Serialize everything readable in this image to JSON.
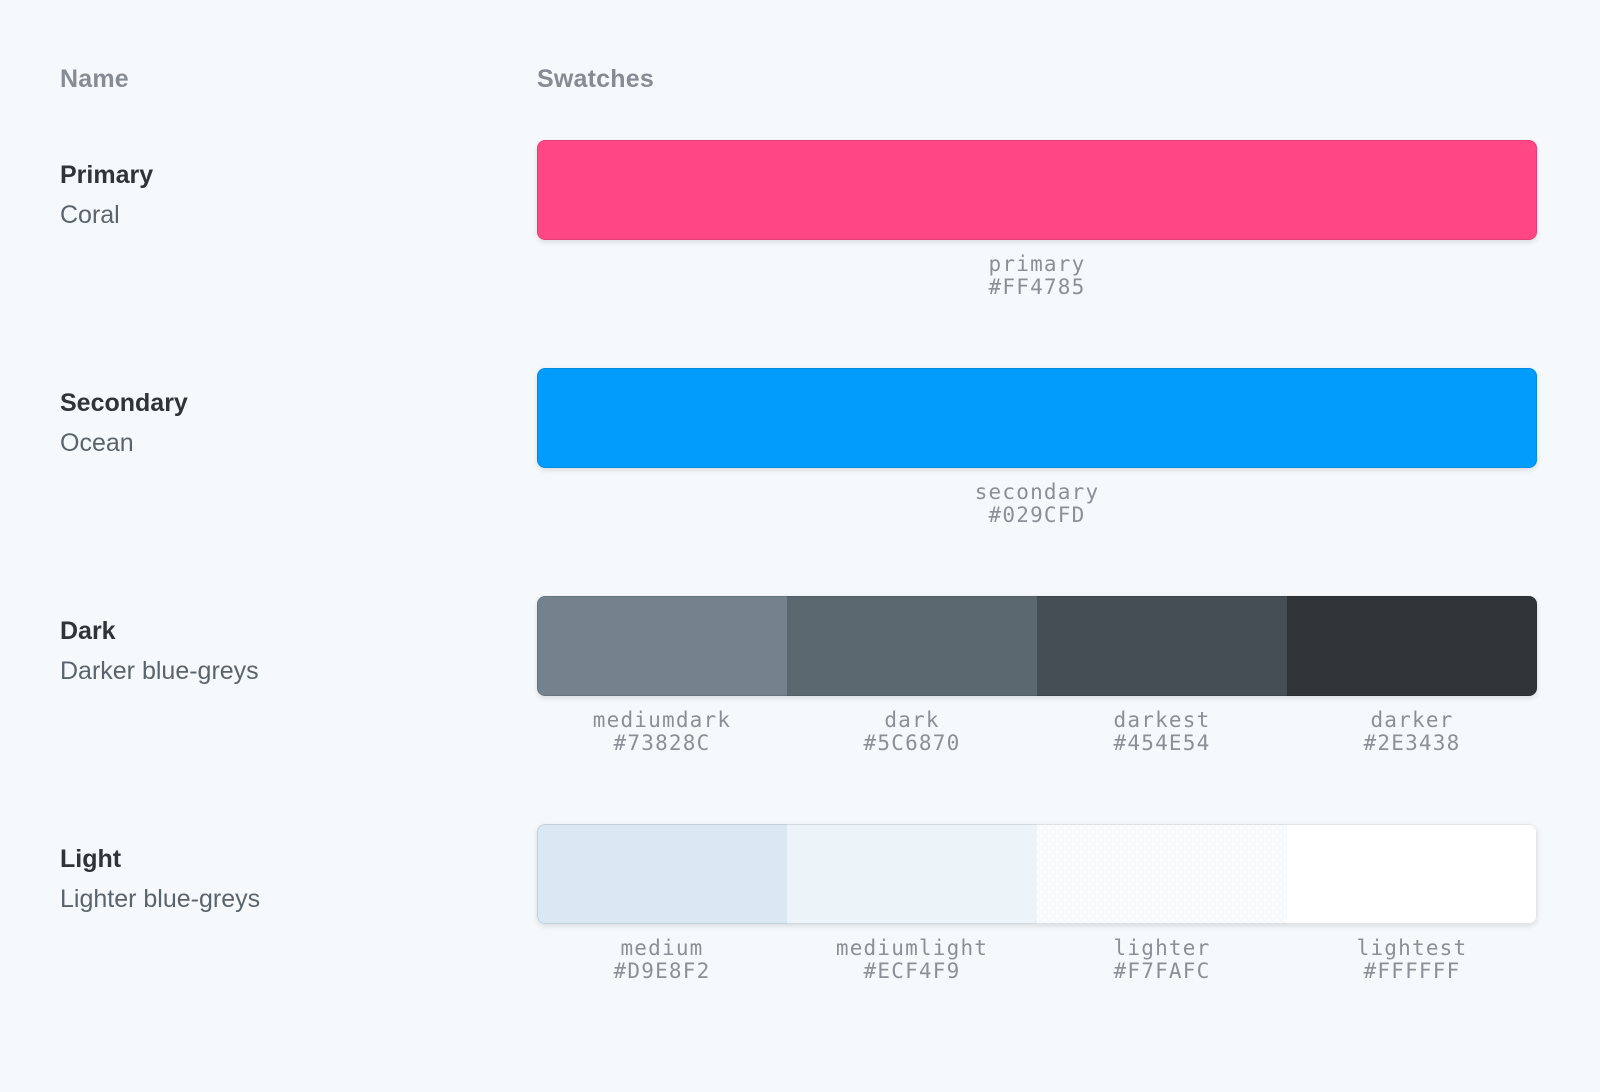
{
  "page": {
    "background": "#F6F9FC"
  },
  "columns": {
    "name": "Name",
    "swatches": "Swatches"
  },
  "palette": [
    {
      "title": "Primary",
      "subtitle": "Coral",
      "swatches": [
        {
          "name": "primary",
          "value": "#FF4785"
        }
      ]
    },
    {
      "title": "Secondary",
      "subtitle": "Ocean",
      "swatches": [
        {
          "name": "secondary",
          "value": "#029CFD"
        }
      ]
    },
    {
      "title": "Dark",
      "subtitle": "Darker blue-greys",
      "swatches": [
        {
          "name": "mediumdark",
          "value": "#73828C"
        },
        {
          "name": "dark",
          "value": "#5C6870"
        },
        {
          "name": "darkest",
          "value": "#454E54"
        },
        {
          "name": "darker",
          "value": "#2E3438"
        }
      ]
    },
    {
      "title": "Light",
      "subtitle": "Lighter blue-greys",
      "swatches": [
        {
          "name": "medium",
          "value": "#D9E8F2"
        },
        {
          "name": "mediumlight",
          "value": "#ECF4F9"
        },
        {
          "name": "lighter",
          "value": "#F7FAFC",
          "dotted": true
        },
        {
          "name": "lightest",
          "value": "#FFFFFF"
        }
      ]
    }
  ]
}
